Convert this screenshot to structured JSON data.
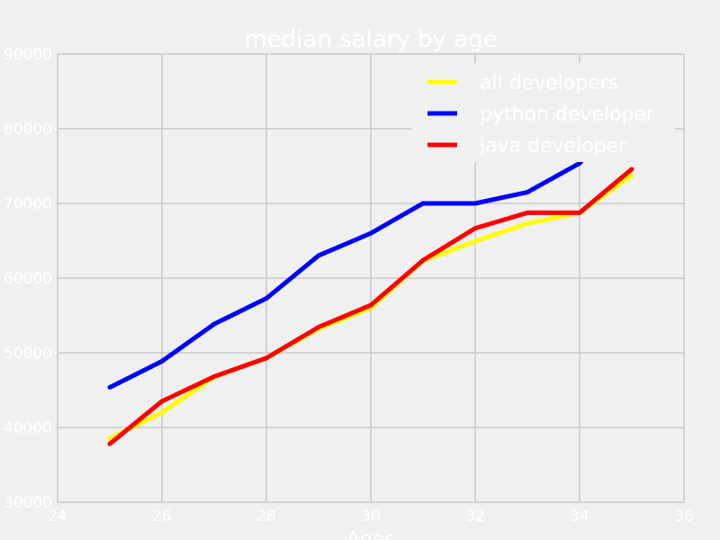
{
  "chart_data": {
    "type": "line",
    "title": "median salary by age",
    "xlabel": "Ages",
    "ylabel": "",
    "xlim": [
      24,
      36
    ],
    "ylim": [
      30000,
      90000
    ],
    "xticks": [
      "24",
      "26",
      "28",
      "30",
      "32",
      "34",
      "36"
    ],
    "yticks": [
      "30000",
      "40000",
      "50000",
      "60000",
      "70000",
      "80000",
      "90000"
    ],
    "grid": true,
    "legend_position": "top-right",
    "x": [
      25,
      26,
      27,
      28,
      29,
      30,
      31,
      32,
      33,
      34,
      35
    ],
    "series": [
      {
        "name": "all developers",
        "color": "#ffff00",
        "values": [
          38496,
          42000,
          46752,
          49320,
          53200,
          56000,
          62316,
          64928,
          67317,
          68748,
          73752
        ]
      },
      {
        "name": "python developer",
        "color": "#0000ff",
        "values": [
          45372,
          48876,
          53850,
          57287,
          63016,
          65998,
          70003,
          70000,
          71496,
          75370,
          83640
        ]
      },
      {
        "name": "java developer",
        "color": "#ff0000",
        "values": [
          37810,
          43515,
          46823,
          49293,
          53437,
          56373,
          62375,
          66674,
          68745,
          68746,
          74583
        ]
      }
    ]
  }
}
